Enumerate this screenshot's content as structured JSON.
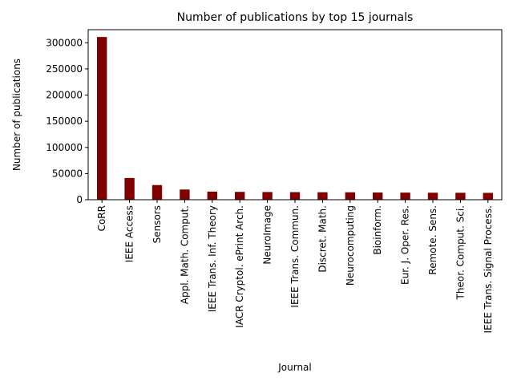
{
  "chart_data": {
    "type": "bar",
    "title": "Number of publications by top 15 journals",
    "xlabel": "Journal",
    "ylabel": "Number of publications",
    "categories": [
      "CoRR",
      "IEEE Access",
      "Sensors",
      "Appl. Math. Comput.",
      "IEEE Trans. Inf. Theory",
      "IACR Cryptol. ePrint Arch.",
      "NeuroImage",
      "IEEE Trans. Commun.",
      "Discret. Math.",
      "Neurocomputing",
      "Bioinform.",
      "Eur. J. Oper. Res.",
      "Remote. Sens.",
      "Theor. Comput. Sci.",
      "IEEE Trans. Signal Process."
    ],
    "values": [
      311000,
      41500,
      28000,
      19500,
      15500,
      15000,
      14700,
      14500,
      14300,
      14200,
      13800,
      13600,
      13400,
      13300,
      13100
    ],
    "ylim": [
      0,
      325000
    ],
    "yticks": [
      0,
      50000,
      100000,
      150000,
      200000,
      250000,
      300000
    ],
    "ytick_labels": [
      "0",
      "50000",
      "100000",
      "150000",
      "200000",
      "250000",
      "300000"
    ],
    "bar_color": "#800000",
    "grid": false,
    "legend": "none"
  }
}
